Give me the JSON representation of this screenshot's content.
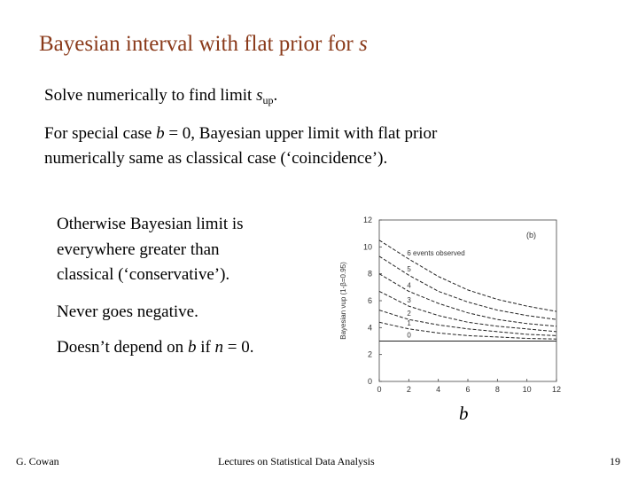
{
  "slide": {
    "title_pre": "Bayesian interval with flat prior for ",
    "title_var": "s",
    "line1_pre": "Solve numerically to find limit ",
    "line1_var": "s",
    "line1_sub": "up",
    "line1_post": ".",
    "line2a_pre": "For special case ",
    "line2a_var": "b",
    "line2a_post": " = 0, Bayesian upper limit with flat prior",
    "line2b": "numerically same as classical case (‘coincidence’).",
    "other1": "Otherwise Bayesian limit is",
    "other2": "everywhere greater than",
    "other3": "classical (‘conservative’).",
    "never": "Never goes negative.",
    "doesnt_pre": "Doesn’t depend on ",
    "doesnt_b": "b",
    "doesnt_mid": " if ",
    "doesnt_n": "n",
    "doesnt_post": " = 0.",
    "b_label": "b"
  },
  "footer": {
    "author": "G. Cowan",
    "course": "Lectures on Statistical Data Analysis",
    "page": "19"
  },
  "chart_data": {
    "type": "line",
    "title": "",
    "panel_label": "(b)",
    "annotation": "6  events observed",
    "ylabel": "Bayesian  νup (1-β=0.95)",
    "xlim": [
      0,
      12
    ],
    "ylim": [
      0,
      12
    ],
    "xticks": [
      "0",
      "2",
      "4",
      "6",
      "8",
      "10",
      "12"
    ],
    "yticks": [
      "0",
      "2",
      "4",
      "6",
      "8",
      "10",
      "12"
    ],
    "series": [
      {
        "name": "6",
        "x": [
          0,
          2,
          4,
          6,
          8,
          10,
          12
        ],
        "y": [
          10.5,
          9.1,
          7.8,
          6.8,
          6.1,
          5.6,
          5.2
        ]
      },
      {
        "name": "5",
        "x": [
          0,
          2,
          4,
          6,
          8,
          10,
          12
        ],
        "y": [
          9.3,
          7.9,
          6.7,
          5.9,
          5.3,
          4.9,
          4.6
        ]
      },
      {
        "name": "4",
        "x": [
          0,
          2,
          4,
          6,
          8,
          10,
          12
        ],
        "y": [
          8.0,
          6.7,
          5.8,
          5.1,
          4.6,
          4.3,
          4.1
        ]
      },
      {
        "name": "3",
        "x": [
          0,
          2,
          4,
          6,
          8,
          10,
          12
        ],
        "y": [
          6.7,
          5.6,
          4.9,
          4.4,
          4.1,
          3.9,
          3.7
        ]
      },
      {
        "name": "2",
        "x": [
          0,
          2,
          4,
          6,
          8,
          10,
          12
        ],
        "y": [
          5.3,
          4.6,
          4.2,
          3.9,
          3.7,
          3.5,
          3.4
        ]
      },
      {
        "name": "1",
        "x": [
          0,
          2,
          4,
          6,
          8,
          10,
          12
        ],
        "y": [
          4.4,
          3.9,
          3.6,
          3.4,
          3.3,
          3.2,
          3.15
        ]
      },
      {
        "name": "0",
        "x": [
          0,
          2,
          4,
          6,
          8,
          10,
          12
        ],
        "y": [
          3.0,
          3.0,
          3.0,
          3.0,
          3.0,
          3.0,
          3.0
        ]
      }
    ],
    "grid": false
  }
}
